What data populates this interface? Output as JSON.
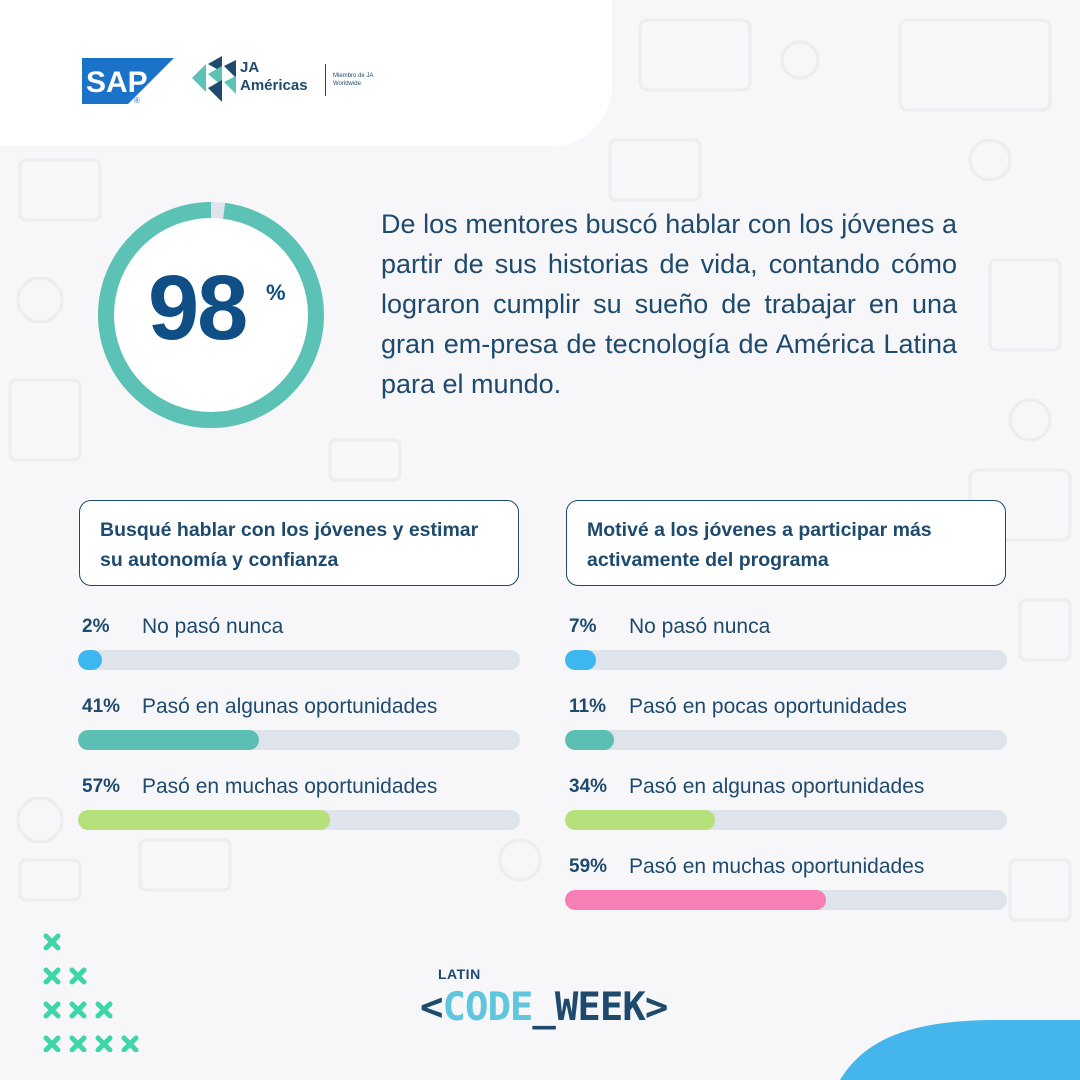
{
  "header": {
    "sap_logo_text": "SAP",
    "sap_registered": "®",
    "ja_name_line1": "JA",
    "ja_name_line2": "Américas",
    "ja_member_text": "Miembro de JA Worldwide"
  },
  "highlight": {
    "value": 98,
    "number": "98",
    "percent_sign": "%",
    "text": "De los mentores buscó hablar con los jóvenes a partir de sus historias de vida, contando cómo lograron cumplir su sueño de trabajar en una gran em-presa de tecnología de América Latina para el mundo."
  },
  "colors": {
    "navy": "#1e4a6e",
    "ring": "#5cc2b6",
    "ring_track": "#dfe4ec",
    "blue": "#3db7ef",
    "teal": "#5bbfb2",
    "green": "#b5e07a",
    "pink": "#f77fb5",
    "track": "#dfe4ec"
  },
  "chart_data": [
    {
      "type": "bar",
      "title": "Busqué hablar con los jóvenes y estimar su autonomía y confianza",
      "categories": [
        "No pasó nunca",
        "Pasó en algunas oportunidades",
        "Pasó en muchas oportunidades"
      ],
      "values": [
        2,
        41,
        57
      ],
      "value_labels": [
        "2%",
        "41%",
        "57%"
      ],
      "colors": [
        "#3db7ef",
        "#5bbfb2",
        "#b5e07a"
      ],
      "ylim": [
        0,
        100
      ]
    },
    {
      "type": "bar",
      "title": "Motivé a los jóvenes a participar más activamente del programa",
      "categories": [
        "No pasó nunca",
        "Pasó en pocas oportunidades",
        "Pasó en algunas oportunidades",
        "Pasó en muchas oportunidades"
      ],
      "values": [
        7,
        11,
        34,
        59
      ],
      "value_labels": [
        "7%",
        "11%",
        "34%",
        "59%"
      ],
      "colors": [
        "#3db7ef",
        "#5bbfb2",
        "#b5e07a",
        "#f77fb5"
      ],
      "ylim": [
        0,
        100
      ]
    }
  ],
  "footer": {
    "latin": "LATIN",
    "bracket_open": "<",
    "code": "CODE",
    "underscore": "_",
    "week": "WEEK",
    "bracket_close": ">"
  }
}
